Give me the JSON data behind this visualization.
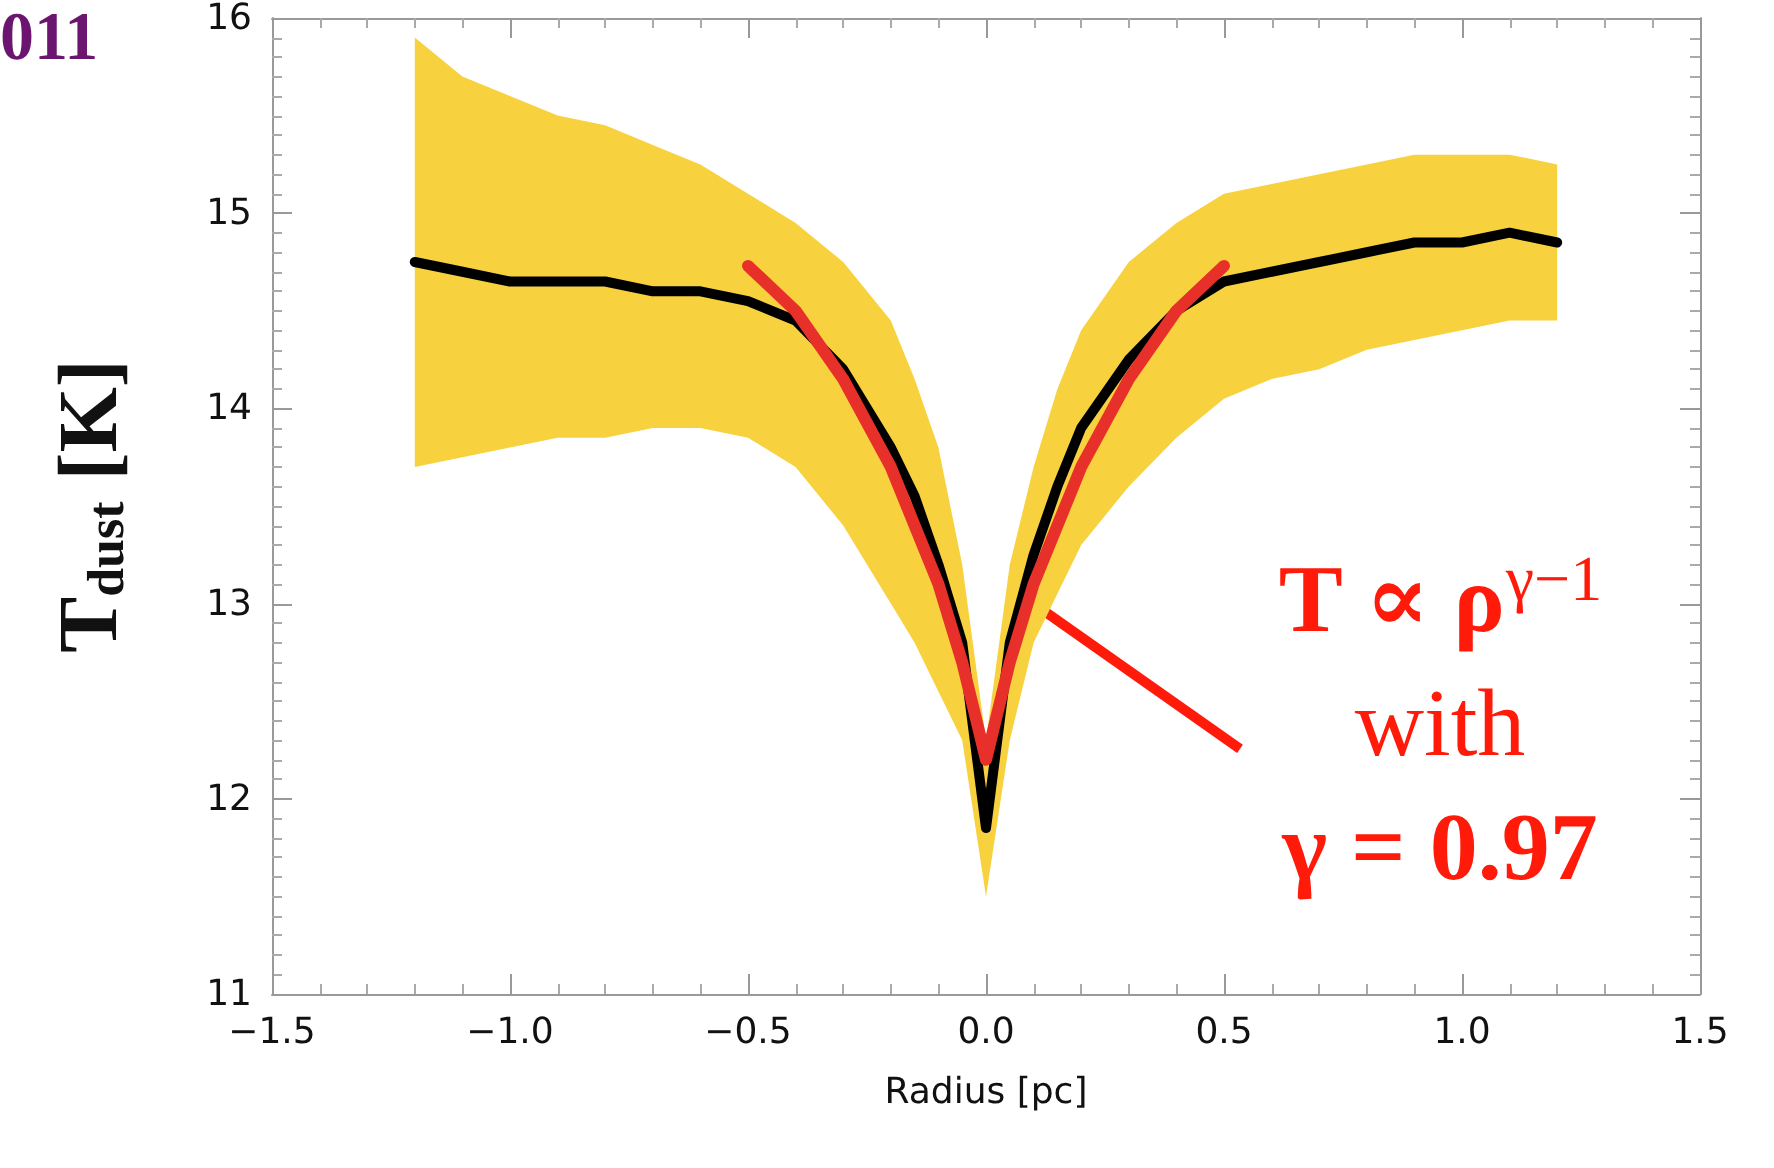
{
  "chart_data": {
    "type": "line",
    "xlabel": "Radius [pc]",
    "ylabel": "T$_{dust}$ [K]",
    "xlim": [
      -1.5,
      1.5
    ],
    "ylim": [
      11,
      16
    ],
    "xticks": [
      {
        "value": -1.5,
        "label": "−1.5"
      },
      {
        "value": -1.0,
        "label": "−1.0"
      },
      {
        "value": -0.5,
        "label": "−0.5"
      },
      {
        "value": 0,
        "label": "0.0"
      },
      {
        "value": 0.5,
        "label": "0.5"
      },
      {
        "value": 1.0,
        "label": "1.0"
      },
      {
        "value": 1.5,
        "label": "1.5"
      }
    ],
    "yticks": [
      11,
      12,
      13,
      14,
      15,
      16
    ],
    "grid": false,
    "marker": "none",
    "line_style": "solid",
    "series": [
      {
        "color": "#000000",
        "x": [
          -1.2,
          -1.1,
          -1.0,
          -0.9,
          -0.8,
          -0.7,
          -0.6,
          -0.5,
          -0.4,
          -0.3,
          -0.2,
          -0.15,
          -0.1,
          -0.05,
          0,
          0.05,
          0.1,
          0.15,
          0.2,
          0.3,
          0.4,
          0.5,
          0.6,
          0.7,
          0.8,
          0.9,
          1.0,
          1.1,
          1.2
        ],
        "values": [
          14.75,
          14.7,
          14.65,
          14.65,
          14.65,
          14.6,
          14.6,
          14.55,
          14.45,
          14.2,
          13.8,
          13.55,
          13.2,
          12.8,
          11.85,
          12.8,
          13.25,
          13.6,
          13.9,
          14.25,
          14.5,
          14.65,
          14.7,
          14.75,
          14.8,
          14.85,
          14.85,
          14.9,
          14.85
        ],
        "lower": [
          13.7,
          13.75,
          13.8,
          13.85,
          13.85,
          13.9,
          13.9,
          13.85,
          13.7,
          13.4,
          13.0,
          12.8,
          12.55,
          12.3,
          11.5,
          12.3,
          12.8,
          13.05,
          13.3,
          13.6,
          13.85,
          14.05,
          14.15,
          14.2,
          14.3,
          14.35,
          14.4,
          14.45,
          14.45
        ],
        "upper": [
          15.9,
          15.7,
          15.6,
          15.5,
          15.45,
          15.35,
          15.25,
          15.1,
          14.95,
          14.75,
          14.45,
          14.15,
          13.8,
          13.2,
          12.3,
          13.2,
          13.7,
          14.1,
          14.4,
          14.75,
          14.95,
          15.1,
          15.15,
          15.2,
          15.25,
          15.3,
          15.3,
          15.3,
          15.25
        ]
      },
      {
        "color": "#e8302a",
        "x": [
          -0.5,
          -0.4,
          -0.3,
          -0.2,
          -0.1,
          -0.05,
          0,
          0.05,
          0.1,
          0.2,
          0.3,
          0.4,
          0.5
        ],
        "values": [
          14.73,
          14.5,
          14.15,
          13.7,
          13.1,
          12.7,
          12.2,
          12.7,
          13.1,
          13.7,
          14.15,
          14.5,
          14.73
        ]
      }
    ],
    "annotations": [
      "011",
      {
        "text": "T ∝ ρ$^{γ−1}$\nwith\nγ = 0.97",
        "x": 0.1,
        "y": 13.0
      }
    ]
  }
}
